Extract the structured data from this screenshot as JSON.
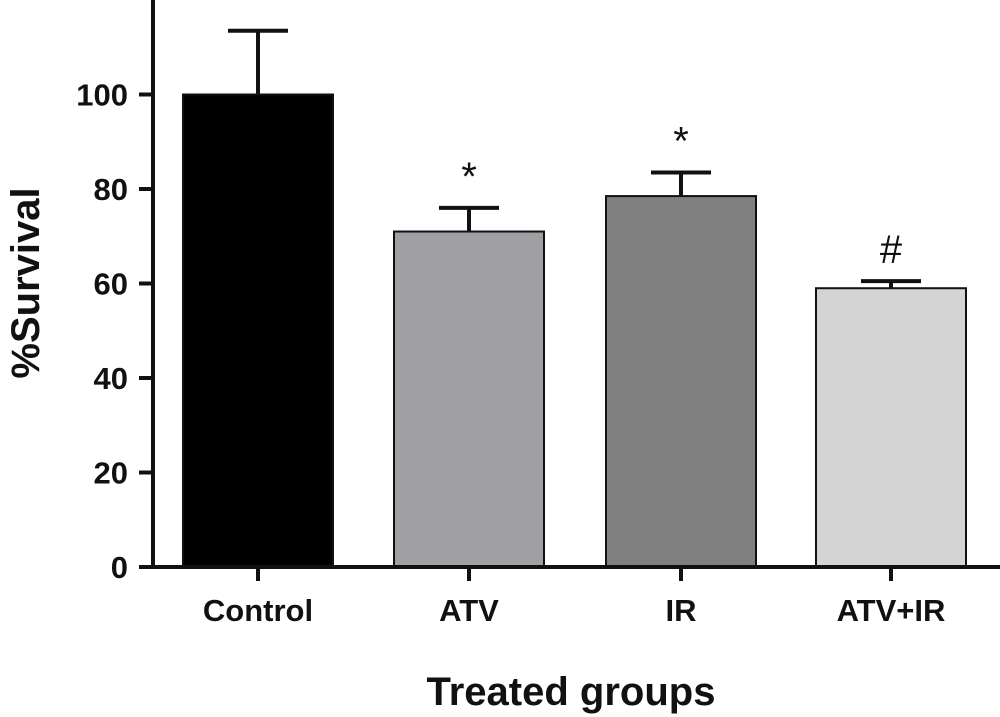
{
  "chart_data": {
    "type": "bar",
    "categories": [
      "Control",
      "ATV",
      "IR",
      "ATV+IR"
    ],
    "values": [
      100,
      71,
      78.5,
      59
    ],
    "error_upper": [
      113.5,
      76,
      83.5,
      60.5
    ],
    "bar_colors": [
      "#000000",
      "#a0a0a4",
      "#808080",
      "#d4d4d4"
    ],
    "annotations": [
      "",
      "*",
      "*",
      "#"
    ],
    "xlabel": "Treated groups",
    "ylabel": "%Survival",
    "ylim": [
      0,
      120
    ],
    "yticks": [
      0,
      20,
      40,
      60,
      80,
      100
    ],
    "ytick_labels": [
      "0",
      "20",
      "40",
      "60",
      "80",
      "100"
    ],
    "grid": false,
    "legend": "none"
  }
}
